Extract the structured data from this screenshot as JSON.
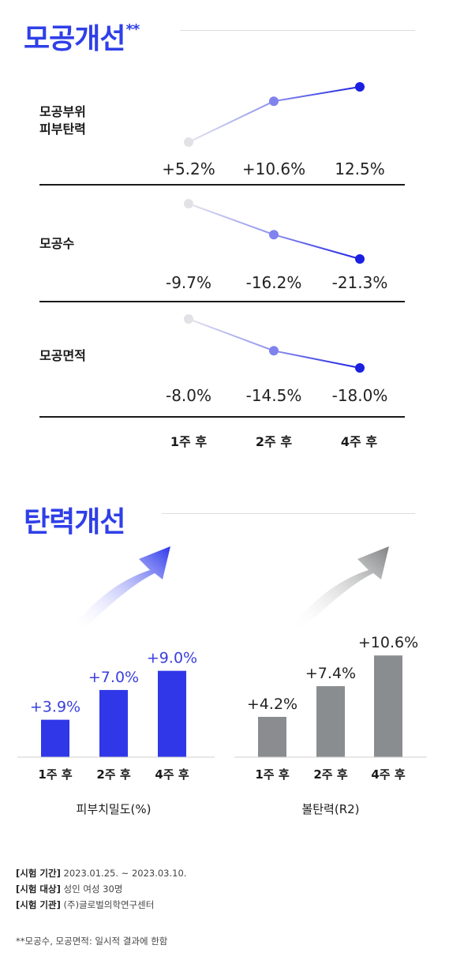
{
  "section1": {
    "title": "모공개선",
    "title_mark": "**",
    "x_labels": [
      "1주 후",
      "2주 후",
      "4주 후"
    ]
  },
  "section2": {
    "title": "탄력개선"
  },
  "chart_data": [
    {
      "type": "line",
      "label": "모공부위 피부탄력",
      "label_lines": [
        "모공부위",
        "피부탄력"
      ],
      "categories": [
        "1주 후",
        "2주 후",
        "4주 후"
      ],
      "values": [
        5.2,
        10.6,
        12.5
      ],
      "value_labels": [
        "+5.2%",
        "+10.6%",
        "12.5%"
      ],
      "color": "#1a1fe0"
    },
    {
      "type": "line",
      "label": "모공수",
      "label_lines": [
        "모공수"
      ],
      "categories": [
        "1주 후",
        "2주 후",
        "4주 후"
      ],
      "values": [
        -9.7,
        -16.2,
        -21.3
      ],
      "value_labels": [
        "-9.7%",
        "-16.2%",
        "-21.3%"
      ],
      "color": "#1a1fe0"
    },
    {
      "type": "line",
      "label": "모공면적",
      "label_lines": [
        "모공면적"
      ],
      "categories": [
        "1주 후",
        "2주 후",
        "4주 후"
      ],
      "values": [
        -8.0,
        -14.5,
        -18.0
      ],
      "value_labels": [
        "-8.0%",
        "-14.5%",
        "-18.0%"
      ],
      "color": "#1a1fe0"
    },
    {
      "type": "bar",
      "xlabel": "피부치밀도(%)",
      "categories": [
        "1주 후",
        "2주 후",
        "4주 후"
      ],
      "values": [
        3.9,
        7.0,
        9.0
      ],
      "value_labels": [
        "+3.9%",
        "+7.0%",
        "+9.0%"
      ],
      "color": "#3037e8"
    },
    {
      "type": "bar",
      "xlabel": "볼탄력(R2)",
      "categories": [
        "1주 후",
        "2주 후",
        "4주 후"
      ],
      "values": [
        4.2,
        7.4,
        10.6
      ],
      "value_labels": [
        "+4.2%",
        "+7.4%",
        "+10.6%"
      ],
      "color": "#8a8d90"
    }
  ],
  "notes": [
    {
      "key": "[시험 기간]",
      "value": "2023.01.25. ~ 2023.03.10."
    },
    {
      "key": "[시험 대상]",
      "value": "성인 여성 30명"
    },
    {
      "key": "[시험 기관]",
      "value": "(주)글로벌의학연구센터"
    }
  ],
  "footnote": "**모공수, 모공면적: 일시적 결과에 한함"
}
